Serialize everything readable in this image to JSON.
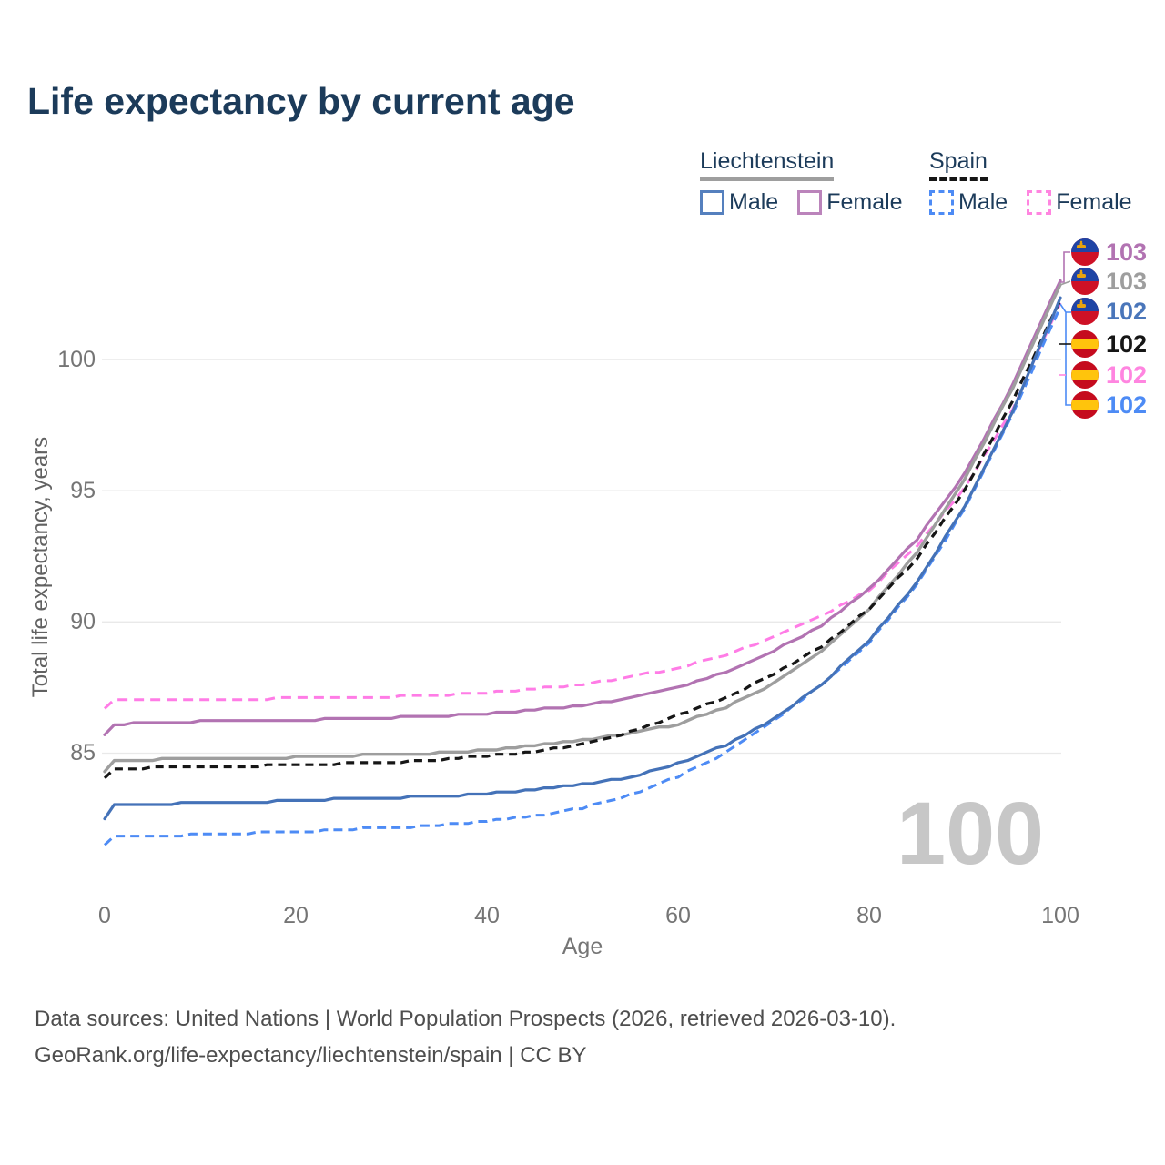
{
  "title": "Life expectancy by current age",
  "legend": {
    "groups": [
      {
        "label": "Liechtenstein",
        "line_color": "#9e9e9e",
        "line_style": "solid",
        "items": [
          {
            "label": "Male",
            "color": "#5580be",
            "style": "solid"
          },
          {
            "label": "Female",
            "color": "#bb84bb",
            "style": "solid"
          }
        ]
      },
      {
        "label": "Spain",
        "line_color": "#161616",
        "line_style": "dashed",
        "items": [
          {
            "label": "Male",
            "color": "#4d8bf5",
            "style": "dashed"
          },
          {
            "label": "Female",
            "color": "#ff85e0",
            "style": "dashed"
          }
        ]
      }
    ]
  },
  "watermark_age": "100",
  "end_labels": [
    {
      "value": "103",
      "country": "liechtenstein",
      "color": "#b273b2"
    },
    {
      "value": "103",
      "country": "liechtenstein",
      "color": "#9e9e9e"
    },
    {
      "value": "102",
      "country": "liechtenstein",
      "color": "#4a76ba"
    },
    {
      "value": "102",
      "country": "spain",
      "color": "#161616"
    },
    {
      "value": "102",
      "country": "spain",
      "color": "#ff85e0"
    },
    {
      "value": "102",
      "country": "spain",
      "color": "#4d8bf5"
    }
  ],
  "footer": {
    "line1": "Data sources: United Nations | World Population Prospects (2026, retrieved 2026-03-10).",
    "line2": "GeoRank.org/life-expectancy/liechtenstein/spain | CC BY"
  },
  "chart_data": {
    "type": "line",
    "title": "Life expectancy by current age",
    "xlabel": "Age",
    "ylabel": "Total life expectancy, years",
    "x_ticks": [
      "0",
      "20",
      "40",
      "60",
      "80",
      "100"
    ],
    "x_tick_values": [
      0,
      20,
      40,
      60,
      80,
      100
    ],
    "y_ticks": [
      "100",
      "95",
      "90",
      "85"
    ],
    "y_tick_values": [
      100,
      95,
      90,
      85
    ],
    "xlim": [
      0,
      100
    ],
    "ylim": [
      81,
      104
    ],
    "grid": "horizontal",
    "legend_position": "top-right",
    "anchor_ages": [
      0,
      1,
      5,
      10,
      15,
      20,
      25,
      30,
      35,
      40,
      45,
      50,
      55,
      60,
      65,
      70,
      75,
      80,
      85,
      90,
      95,
      100
    ],
    "series": [
      {
        "name": "Spain Female",
        "color": "#ff7ce6",
        "dash": "11 7",
        "width": 3,
        "values": [
          86.7,
          87.0,
          87.0,
          87.0,
          87.05,
          87.1,
          87.1,
          87.15,
          87.2,
          87.3,
          87.45,
          87.6,
          87.9,
          88.25,
          88.75,
          89.4,
          90.2,
          91.2,
          92.9,
          95.1,
          98.1,
          102.15
        ]
      },
      {
        "name": "Liechtenstein Female",
        "color": "#b273b2",
        "dash": "none",
        "width": 3.2,
        "values": [
          85.7,
          86.1,
          86.15,
          86.2,
          86.2,
          86.25,
          86.3,
          86.35,
          86.4,
          86.5,
          86.65,
          86.8,
          87.1,
          87.5,
          88.1,
          88.9,
          89.85,
          91.25,
          93.15,
          95.65,
          99.0,
          103.0
        ]
      },
      {
        "name": "Liechtenstein Both sexes",
        "color": "#9e9e9e",
        "dash": "none",
        "width": 3.4,
        "values": [
          84.3,
          84.7,
          84.75,
          84.8,
          84.8,
          84.85,
          84.9,
          84.95,
          85.0,
          85.1,
          85.3,
          85.5,
          85.75,
          86.1,
          86.75,
          87.65,
          88.9,
          90.5,
          92.65,
          95.45,
          98.9,
          102.85
        ]
      },
      {
        "name": "Spain Both sexes",
        "color": "#161616",
        "dash": "9 6",
        "width": 3.2,
        "values": [
          84.05,
          84.4,
          84.45,
          84.5,
          84.5,
          84.55,
          84.6,
          84.65,
          84.75,
          84.9,
          85.05,
          85.35,
          85.8,
          86.45,
          87.1,
          88.0,
          89.05,
          90.5,
          92.4,
          95.0,
          98.4,
          102.25
        ]
      },
      {
        "name": "Spain Male",
        "color": "#4d8bf5",
        "dash": "10 6",
        "width": 3,
        "values": [
          81.5,
          81.8,
          81.85,
          81.9,
          81.95,
          82.0,
          82.1,
          82.15,
          82.25,
          82.4,
          82.6,
          82.9,
          83.4,
          84.1,
          85.0,
          86.2,
          87.6,
          89.2,
          91.4,
          94.3,
          97.9,
          102.0
        ]
      },
      {
        "name": "Liechtenstein Male",
        "color": "#4472b8",
        "dash": "none",
        "width": 3.2,
        "values": [
          82.5,
          83.0,
          83.05,
          83.1,
          83.1,
          83.2,
          83.25,
          83.3,
          83.35,
          83.45,
          83.6,
          83.8,
          84.1,
          84.6,
          85.3,
          86.3,
          87.6,
          89.3,
          91.5,
          94.4,
          98.0,
          102.35
        ]
      }
    ]
  }
}
